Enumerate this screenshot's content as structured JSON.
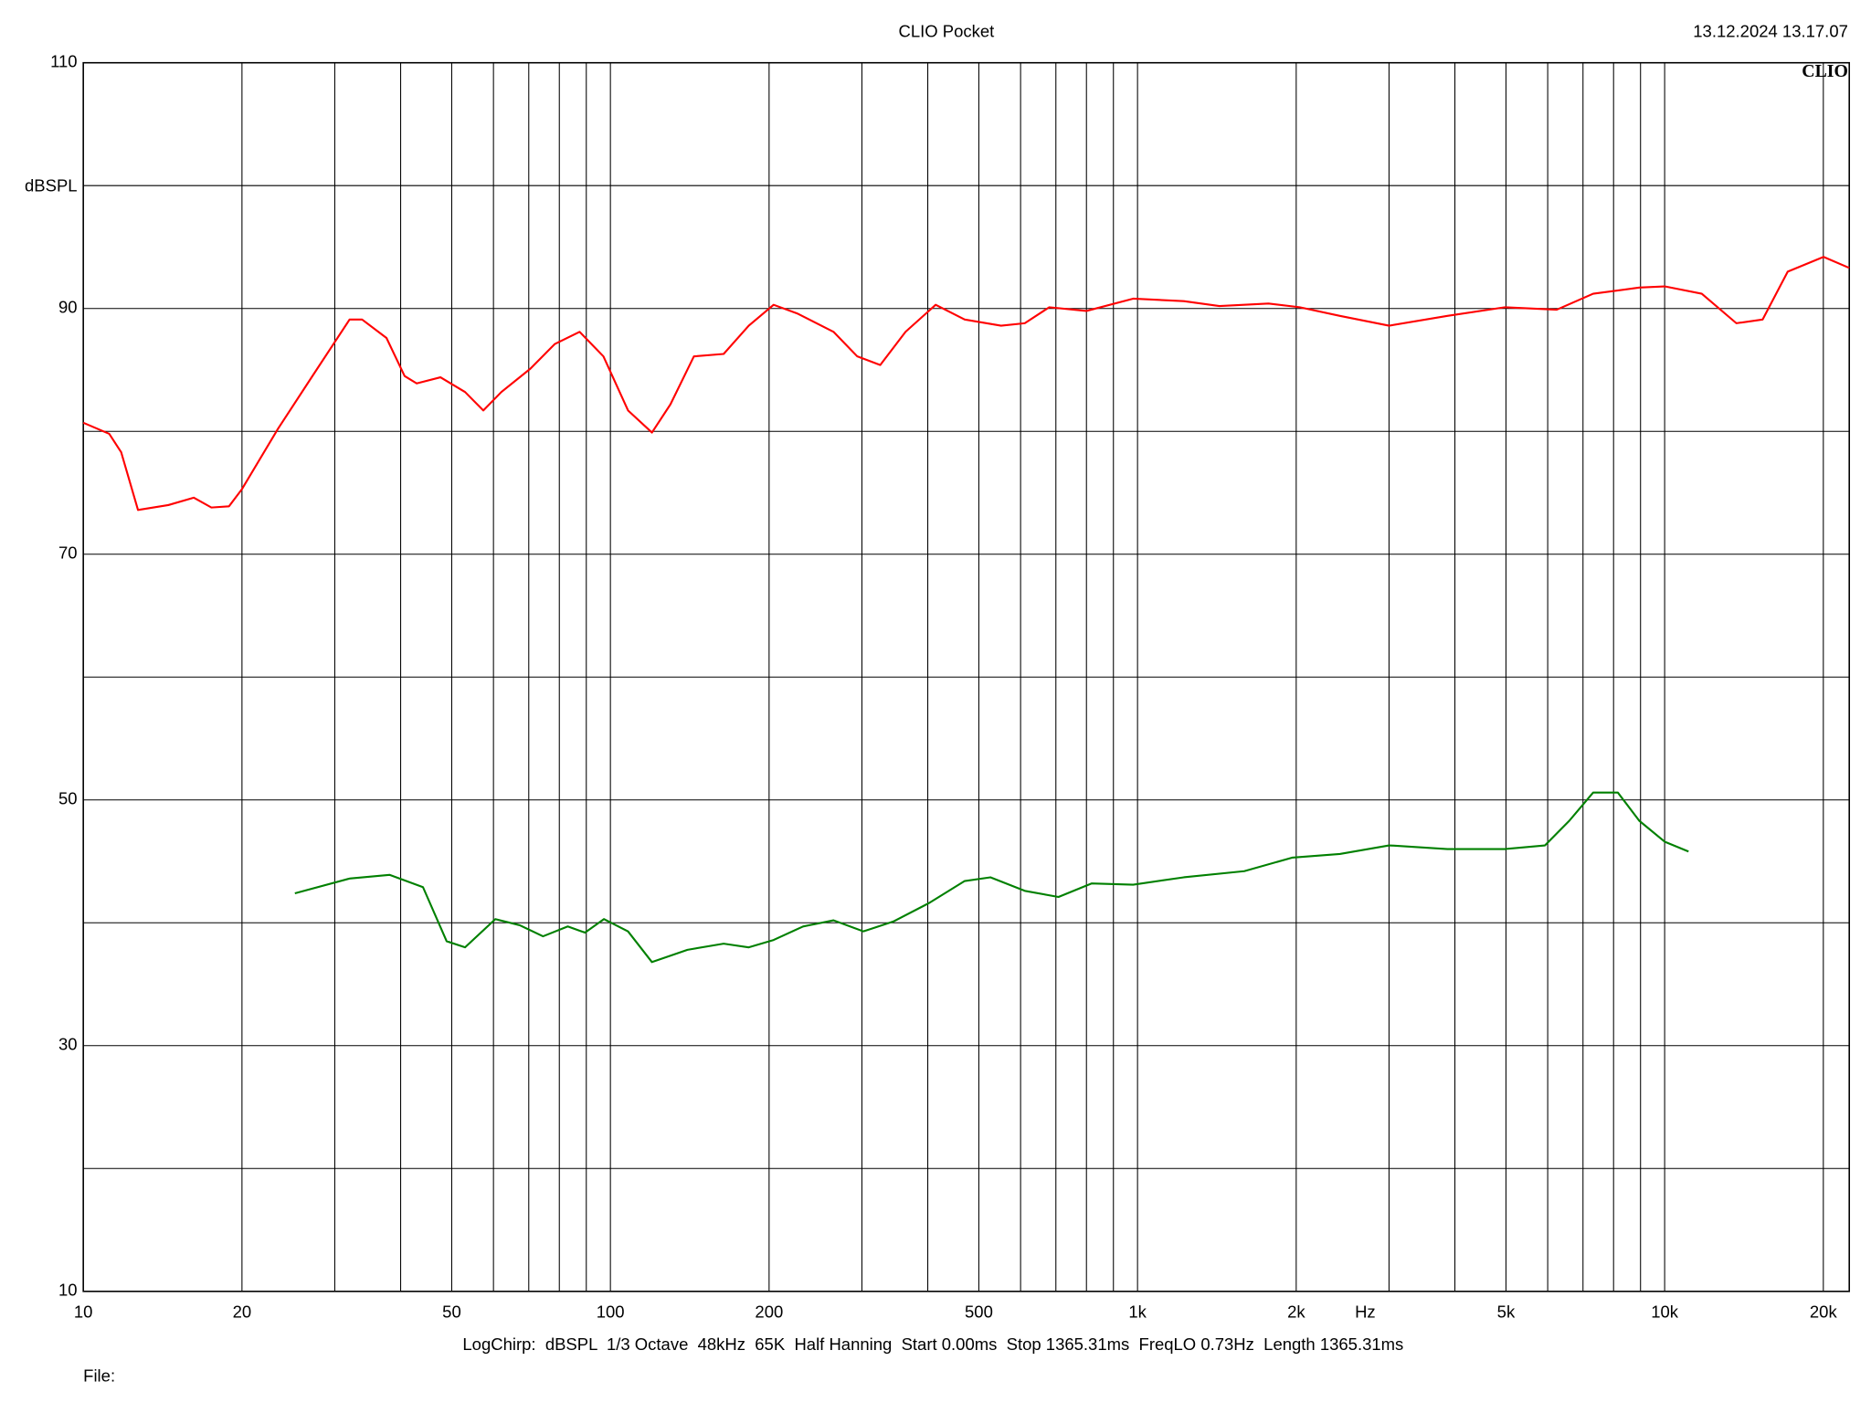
{
  "chart_data": {
    "type": "line",
    "title": "CLIO Pocket",
    "timestamp": "13.12.2024 13.17.07",
    "logo": "CLIO",
    "y_label": "dBSPL",
    "x_label": "Hz",
    "footer": "LogChirp:  dBSPL  1/3 Octave  48kHz  65K  Half Hanning  Start 0.00ms  Stop 1365.31ms  FreqLO 0.73Hz  Length 1365.31ms",
    "file_label": "File:",
    "xscale": "log",
    "grid": true,
    "xlim": [
      10,
      22400
    ],
    "ylim": [
      10,
      110
    ],
    "xticks": [
      10,
      20,
      50,
      100,
      200,
      500,
      {
        "value": 1000,
        "label": "1k"
      },
      {
        "value": 2000,
        "label": "2k"
      },
      {
        "value": 5000,
        "label": "5k"
      },
      {
        "value": 10000,
        "label": "10k"
      },
      {
        "value": 20000,
        "label": "20k"
      }
    ],
    "xminorticks": [
      30,
      40,
      60,
      70,
      80,
      90,
      300,
      400,
      600,
      700,
      800,
      900,
      3000,
      4000,
      6000,
      7000,
      8000,
      9000
    ],
    "yticks": [
      10,
      30,
      50,
      70,
      90,
      110
    ],
    "yminorticks": [
      20,
      40,
      60,
      80,
      100
    ],
    "series": [
      {
        "color": "#ff0000",
        "x": [
          10,
          11.2,
          11.8,
          12.7,
          14.5,
          16.2,
          17.5,
          18.9,
          20,
          23.4,
          27.4,
          32,
          33.8,
          37.6,
          40.7,
          42.9,
          47.6,
          53,
          57.4,
          62.1,
          70.5,
          78.4,
          87.4,
          97,
          108,
          119.9,
          130,
          144,
          164,
          183,
          204,
          226,
          265,
          294,
          325,
          363,
          414,
          470,
          551,
          611,
          680,
          800,
          981,
          1224,
          1430,
          1772,
          2031,
          2420,
          3001,
          3872,
          4977,
          6240,
          7318,
          8952,
          10000,
          11760,
          13680,
          15340,
          17120,
          20020,
          22400
        ],
        "values": [
          80.7,
          79.8,
          78.3,
          73.6,
          74.0,
          74.6,
          73.8,
          73.9,
          75.3,
          80.2,
          84.7,
          89.1,
          89.1,
          87.6,
          84.5,
          83.9,
          84.4,
          83.2,
          81.7,
          83.2,
          85.1,
          87.1,
          88.1,
          86.1,
          81.7,
          79.9,
          82.2,
          86.1,
          86.3,
          88.6,
          90.3,
          89.6,
          88.1,
          86.1,
          85.4,
          88.1,
          90.3,
          89.1,
          88.6,
          88.8,
          90.1,
          89.8,
          90.8,
          90.6,
          90.2,
          90.4,
          90.1,
          89.4,
          88.6,
          89.4,
          90.1,
          89.9,
          91.2,
          91.7,
          91.8,
          91.2,
          88.8,
          89.1,
          93.0,
          94.2,
          93.3
        ]
      },
      {
        "color": "#008000",
        "x": [
          25.2,
          32,
          38.1,
          44.1,
          48.9,
          53,
          60.5,
          67.3,
          74.5,
          83,
          89.5,
          97.2,
          108,
          119.9,
          140,
          164,
          183,
          204,
          232,
          265,
          302,
          344,
          402,
          470,
          526,
          611,
          708,
          818,
          981,
          1224,
          1594,
          1964,
          2420,
          3001,
          3872,
          4977,
          5929,
          6592,
          7318,
          8150,
          8952,
          10000,
          11100
        ],
        "values": [
          42.4,
          43.6,
          43.9,
          42.9,
          38.5,
          38.0,
          40.3,
          39.8,
          38.9,
          39.7,
          39.2,
          40.3,
          39.3,
          36.8,
          37.8,
          38.3,
          38.0,
          38.6,
          39.7,
          40.2,
          39.3,
          40.1,
          41.6,
          43.4,
          43.7,
          42.6,
          42.1,
          43.2,
          43.1,
          43.7,
          44.2,
          45.3,
          45.6,
          46.3,
          46.0,
          46.0,
          46.3,
          48.3,
          50.6,
          50.6,
          48.3,
          46.6,
          45.8
        ]
      }
    ]
  }
}
